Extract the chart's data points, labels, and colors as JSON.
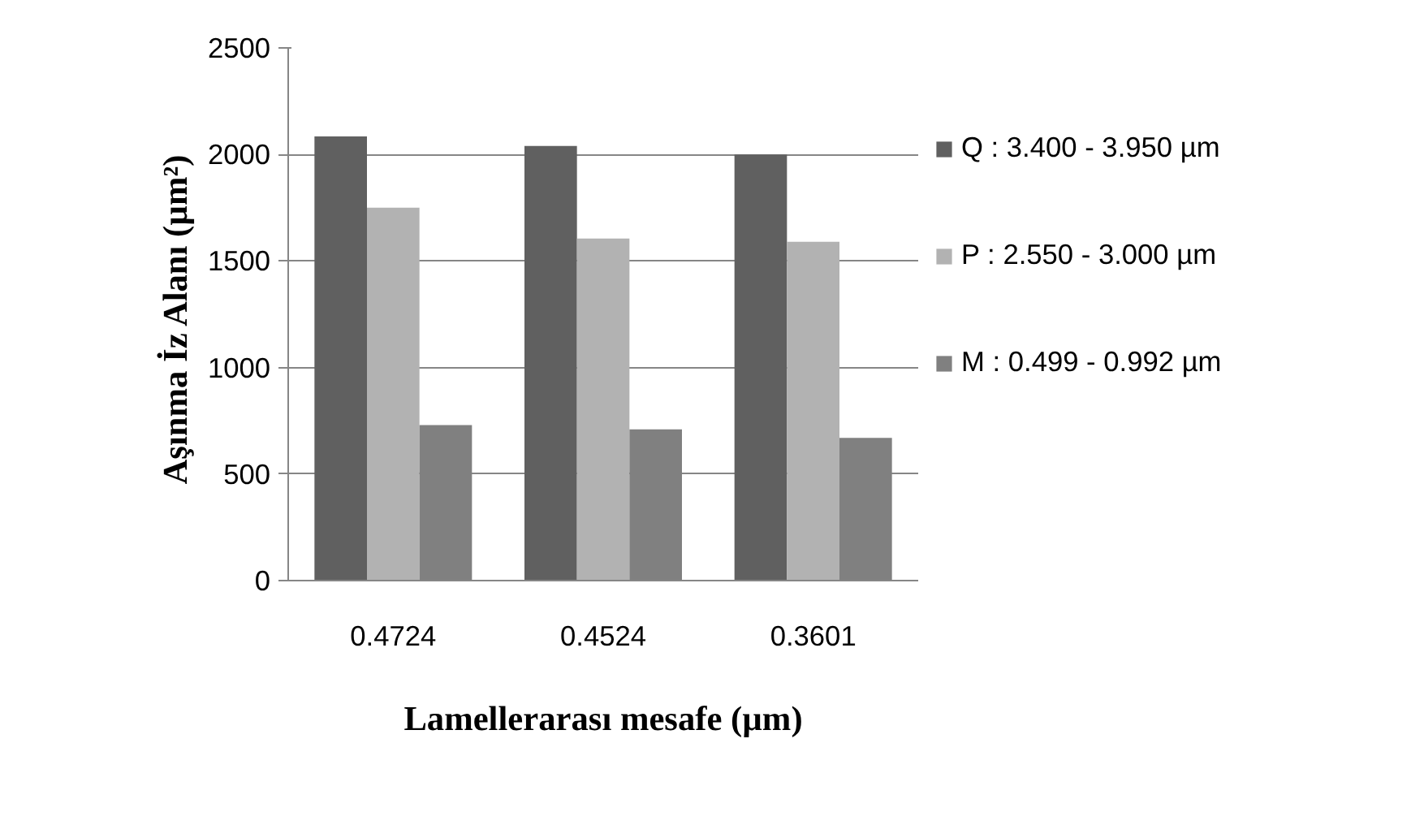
{
  "chart_data": {
    "type": "bar",
    "xlabel": "Lamellerarası mesafe (µm)",
    "ylabel": "Aşınma İz Alanı  (µm²)",
    "categories": [
      "0.4724",
      "0.4524",
      "0.3601"
    ],
    "series": [
      {
        "name": "Q : 3.400 - 3.950 µm",
        "color": "#606060",
        "values": [
          2085,
          2040,
          2000
        ]
      },
      {
        "name": "P : 2.550 - 3.000 µm",
        "color": "#b2b2b2",
        "values": [
          1750,
          1605,
          1590
        ]
      },
      {
        "name": "M : 0.499 - 0.992 µm",
        "color": "#808080",
        "values": [
          730,
          710,
          670
        ]
      }
    ],
    "ylim": [
      0,
      2500
    ],
    "yticks": [
      0,
      500,
      1000,
      1500,
      2000,
      2500
    ],
    "grid": "y",
    "legend": "right"
  }
}
